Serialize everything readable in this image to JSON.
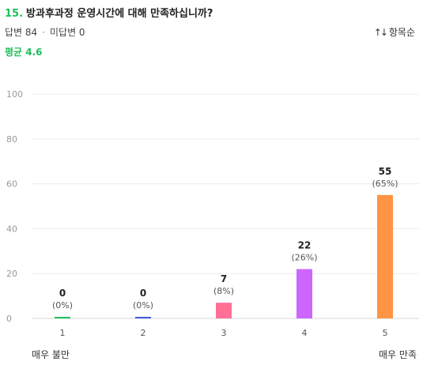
{
  "question": {
    "number": "15.",
    "title": "방과후과정 운영시간에 대해 만족하십니까?"
  },
  "stats": {
    "answered": "답변 84",
    "separator": "·",
    "unanswered": "미답변 0"
  },
  "sort": {
    "icon": "sort-arrows-icon",
    "label": "항목순"
  },
  "average": "평균 4.6",
  "scale_labels": {
    "low": "매우 불만",
    "high": "매우 만족"
  },
  "chart_data": {
    "type": "bar",
    "categories": [
      "1",
      "2",
      "3",
      "4",
      "5"
    ],
    "values": [
      0,
      0,
      7,
      22,
      55
    ],
    "percent_labels": [
      "(0%)",
      "(0%)",
      "(8%)",
      "(26%)",
      "(65%)"
    ],
    "colors": [
      "#1fbf5a",
      "#3b5bdb",
      "#ff7096",
      "#cc66ff",
      "#ff9444"
    ],
    "ylim": [
      0,
      100
    ],
    "yticks": [
      0,
      20,
      40,
      60,
      80,
      100
    ],
    "grid": true
  }
}
